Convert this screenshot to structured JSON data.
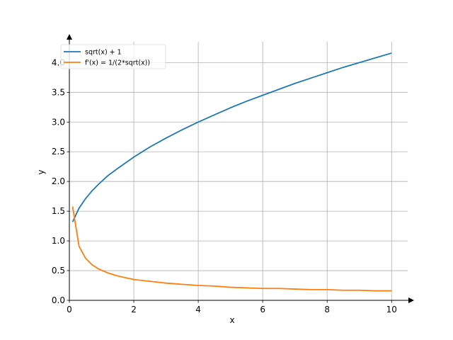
{
  "chart_data": {
    "type": "line",
    "title": "",
    "xlabel": "x",
    "ylabel": "y",
    "xlim": [
      0,
      10.5
    ],
    "ylim": [
      0,
      4.35
    ],
    "xticks": [
      0,
      2,
      4,
      6,
      8,
      10
    ],
    "yticks": [
      0.0,
      0.5,
      1.0,
      1.5,
      2.0,
      2.5,
      3.0,
      3.5,
      4.0
    ],
    "xtick_labels": [
      "0",
      "2",
      "4",
      "6",
      "8",
      "10"
    ],
    "ytick_labels": [
      "0.0",
      "0.5",
      "1.0",
      "1.5",
      "2.0",
      "2.5",
      "3.0",
      "3.5",
      "4.0"
    ],
    "grid": true,
    "legend_position": "top-left",
    "series": [
      {
        "name": "sqrt(x) + 1",
        "color": "#1f77b4",
        "x": [
          0.1,
          0.3,
          0.5,
          0.7,
          0.9,
          1.2,
          1.5,
          2.0,
          2.5,
          3.0,
          3.5,
          4.0,
          4.5,
          5.0,
          5.5,
          6.0,
          6.5,
          7.0,
          7.5,
          8.0,
          8.5,
          9.0,
          9.5,
          10.0
        ],
        "y": [
          1.32,
          1.55,
          1.71,
          1.84,
          1.95,
          2.1,
          2.22,
          2.41,
          2.58,
          2.73,
          2.87,
          3.0,
          3.12,
          3.24,
          3.35,
          3.45,
          3.55,
          3.65,
          3.74,
          3.83,
          3.92,
          4.0,
          4.08,
          4.16
        ]
      },
      {
        "name": "f'(x) = 1/(2*sqrt(x))",
        "color": "#ff7f0e",
        "x": [
          0.1,
          0.3,
          0.5,
          0.7,
          0.9,
          1.2,
          1.5,
          2.0,
          2.5,
          3.0,
          3.5,
          4.0,
          4.5,
          5.0,
          5.5,
          6.0,
          6.5,
          7.0,
          7.5,
          8.0,
          8.5,
          9.0,
          9.5,
          10.0
        ],
        "y": [
          1.58,
          0.91,
          0.71,
          0.6,
          0.53,
          0.46,
          0.41,
          0.35,
          0.32,
          0.29,
          0.27,
          0.25,
          0.24,
          0.22,
          0.21,
          0.2,
          0.2,
          0.19,
          0.18,
          0.18,
          0.17,
          0.17,
          0.16,
          0.16
        ]
      }
    ]
  }
}
